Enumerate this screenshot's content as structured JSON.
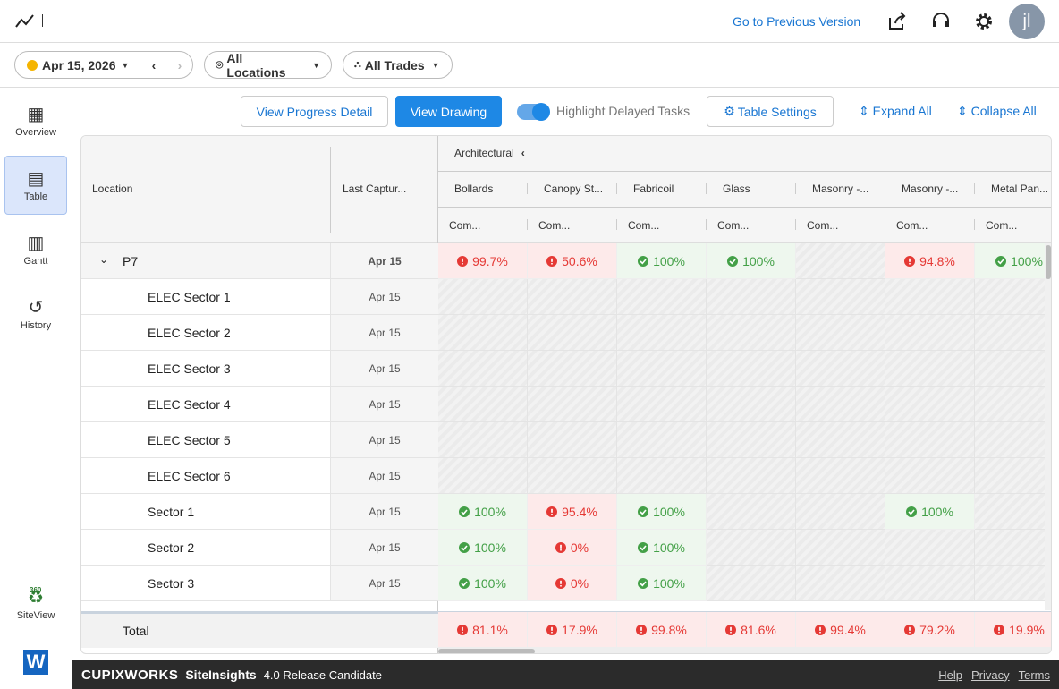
{
  "header": {
    "nav_link": "Go to Previous Version",
    "avatar": "jl"
  },
  "filters": {
    "date": "Apr 15, 2026",
    "locations": "All Locations",
    "trades": "All Trades"
  },
  "sidebar": {
    "items": [
      "Overview",
      "Table",
      "Gantt",
      "History",
      "SiteView"
    ],
    "active": 1,
    "badge": "360"
  },
  "actions": {
    "progress_detail": "View Progress Detail",
    "drawing": "View Drawing",
    "highlight": "Highlight Delayed Tasks",
    "settings": "Table Settings",
    "expand": "Expand All",
    "collapse": "Collapse All"
  },
  "table": {
    "location_header": "Location",
    "capture_header": "Last Captur...",
    "group": "Architectural",
    "columns": [
      {
        "name": "Bollards",
        "sub": "Com..."
      },
      {
        "name": "Canopy St...",
        "sub": "Com..."
      },
      {
        "name": "Fabricoil",
        "sub": "Com..."
      },
      {
        "name": "Glass",
        "sub": "Com..."
      },
      {
        "name": "Masonry -...",
        "sub": "Com..."
      },
      {
        "name": "Masonry -...",
        "sub": "Com..."
      },
      {
        "name": "Metal Pan...",
        "sub": "Com..."
      }
    ],
    "rows": [
      {
        "location": "P7",
        "level": 0,
        "captured": "Apr 15",
        "cells": [
          {
            "text": "99.7%",
            "status": "delayed"
          },
          {
            "text": "50.6%",
            "status": "delayed"
          },
          {
            "text": "100%",
            "status": "complete"
          },
          {
            "text": "100%",
            "status": "complete"
          },
          null,
          {
            "text": "94.8%",
            "status": "delayed"
          },
          {
            "text": "100%",
            "status": "complete"
          }
        ]
      },
      {
        "location": "ELEC Sector 1",
        "level": 1,
        "captured": "Apr 15",
        "cells": [
          null,
          null,
          null,
          null,
          null,
          null,
          null
        ]
      },
      {
        "location": "ELEC Sector 2",
        "level": 1,
        "captured": "Apr 15",
        "cells": [
          null,
          null,
          null,
          null,
          null,
          null,
          null
        ]
      },
      {
        "location": "ELEC Sector 3",
        "level": 1,
        "captured": "Apr 15",
        "cells": [
          null,
          null,
          null,
          null,
          null,
          null,
          null
        ]
      },
      {
        "location": "ELEC Sector 4",
        "level": 1,
        "captured": "Apr 15",
        "cells": [
          null,
          null,
          null,
          null,
          null,
          null,
          null
        ]
      },
      {
        "location": "ELEC Sector 5",
        "level": 1,
        "captured": "Apr 15",
        "cells": [
          null,
          null,
          null,
          null,
          null,
          null,
          null
        ]
      },
      {
        "location": "ELEC Sector 6",
        "level": 1,
        "captured": "Apr 15",
        "cells": [
          null,
          null,
          null,
          null,
          null,
          null,
          null
        ]
      },
      {
        "location": "Sector 1",
        "level": 1,
        "captured": "Apr 15",
        "cells": [
          {
            "text": "100%",
            "status": "complete"
          },
          {
            "text": "95.4%",
            "status": "delayed"
          },
          {
            "text": "100%",
            "status": "complete"
          },
          null,
          null,
          {
            "text": "100%",
            "status": "complete"
          },
          null
        ]
      },
      {
        "location": "Sector 2",
        "level": 1,
        "captured": "Apr 15",
        "cells": [
          {
            "text": "100%",
            "status": "complete"
          },
          {
            "text": "0%",
            "status": "delayed"
          },
          {
            "text": "100%",
            "status": "complete"
          },
          null,
          null,
          null,
          null
        ]
      },
      {
        "location": "Sector 3",
        "level": 1,
        "captured": "Apr 15",
        "cells": [
          {
            "text": "100%",
            "status": "complete"
          },
          {
            "text": "0%",
            "status": "delayed"
          },
          {
            "text": "100%",
            "status": "complete"
          },
          null,
          null,
          null,
          null
        ]
      }
    ],
    "total": {
      "label": "Total",
      "cells": [
        {
          "text": "81.1%",
          "status": "delayed"
        },
        {
          "text": "17.9%",
          "status": "delayed"
        },
        {
          "text": "99.8%",
          "status": "delayed"
        },
        {
          "text": "81.6%",
          "status": "delayed"
        },
        {
          "text": "99.4%",
          "status": "delayed"
        },
        {
          "text": "79.2%",
          "status": "delayed"
        },
        {
          "text": "19.9%",
          "status": "delayed"
        }
      ]
    }
  },
  "footer": {
    "brand": "CUPIXWORKS",
    "product": "SiteInsights",
    "version": "4.0 Release Candidate",
    "links": [
      "Help",
      "Privacy",
      "Terms"
    ]
  }
}
